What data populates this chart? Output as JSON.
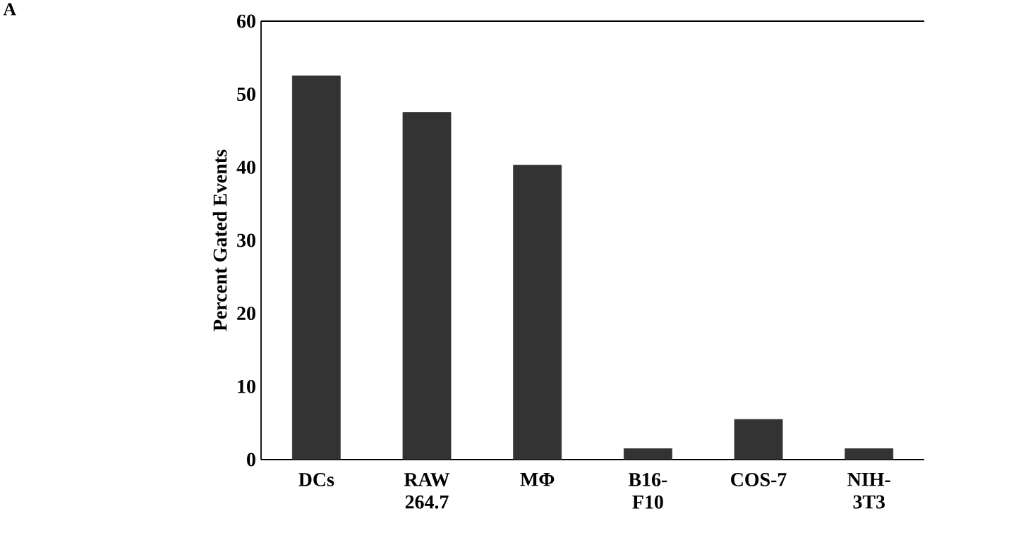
{
  "chart_data": {
    "type": "bar",
    "ylabel": "Percent Gated Events",
    "categories": [
      "DCs",
      "RAW 264.7",
      "MΦ",
      "B16-F10",
      "COS-7",
      "NIH-3T3"
    ],
    "values": [
      52.5,
      47.5,
      40.3,
      1.5,
      5.5,
      1.5
    ],
    "color": "#333333",
    "ylim": [
      0,
      60
    ],
    "yticks": [
      0,
      10,
      20,
      30,
      40,
      50,
      60
    ],
    "annotations": [
      "A"
    ]
  }
}
